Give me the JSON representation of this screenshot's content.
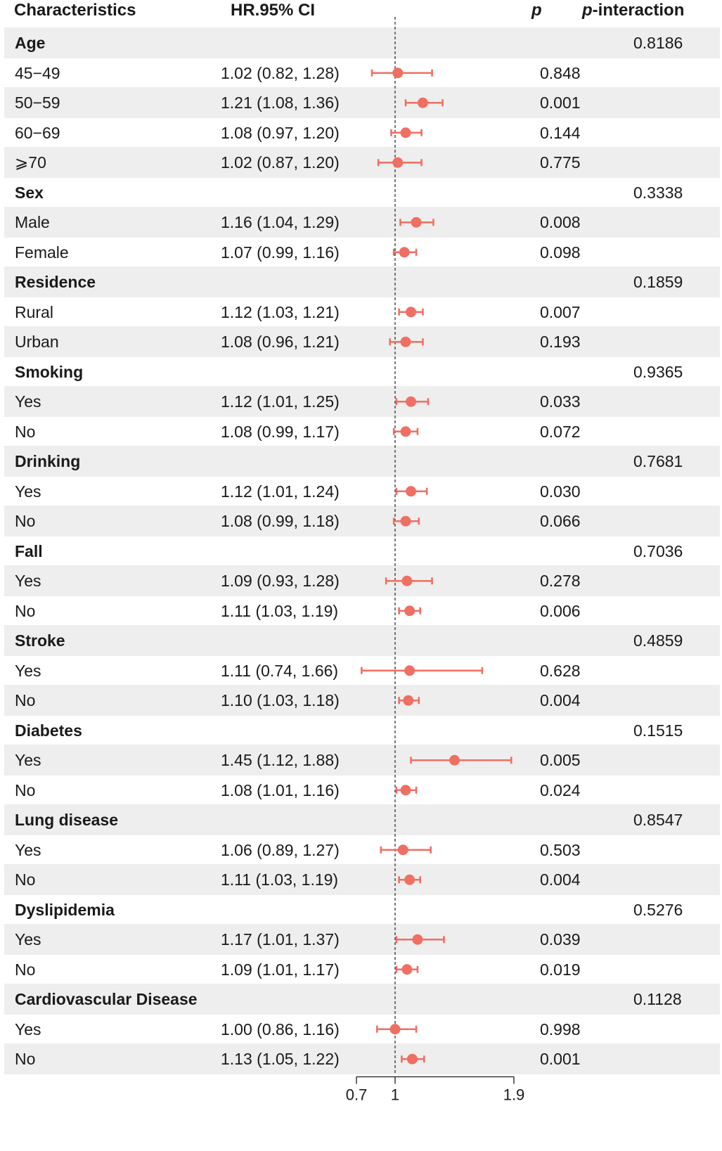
{
  "headers": {
    "characteristics": "Characteristics",
    "hr_ci": "HR.95% CI",
    "p": "p",
    "p_interaction_italic": "p",
    "p_interaction_rest": "-interaction"
  },
  "colors": {
    "point": "#ef6f63",
    "shade": "#eeeeee",
    "refline": "#333333"
  },
  "rows": [
    {
      "label": "Age",
      "group": true,
      "pint": "0.8186"
    },
    {
      "label": "45−49",
      "hr_text": "1.02 (0.82, 1.28)",
      "p": "0.848",
      "hr": 1.02,
      "lo": 0.82,
      "hi": 1.28
    },
    {
      "label": "50−59",
      "hr_text": "1.21 (1.08, 1.36)",
      "p": "0.001",
      "hr": 1.21,
      "lo": 1.08,
      "hi": 1.36
    },
    {
      "label": "60−69",
      "hr_text": "1.08 (0.97, 1.20)",
      "p": "0.144",
      "hr": 1.08,
      "lo": 0.97,
      "hi": 1.2
    },
    {
      "label": "⩾70",
      "hr_text": "1.02 (0.87, 1.20)",
      "p": "0.775",
      "hr": 1.02,
      "lo": 0.87,
      "hi": 1.2
    },
    {
      "label": "Sex",
      "group": true,
      "pint": "0.3338"
    },
    {
      "label": "Male",
      "hr_text": "1.16 (1.04, 1.29)",
      "p": "0.008",
      "hr": 1.16,
      "lo": 1.04,
      "hi": 1.29
    },
    {
      "label": "Female",
      "hr_text": "1.07 (0.99, 1.16)",
      "p": "0.098",
      "hr": 1.07,
      "lo": 0.99,
      "hi": 1.16
    },
    {
      "label": "Residence",
      "group": true,
      "pint": "0.1859"
    },
    {
      "label": "Rural",
      "hr_text": "1.12 (1.03, 1.21)",
      "p": "0.007",
      "hr": 1.12,
      "lo": 1.03,
      "hi": 1.21
    },
    {
      "label": "Urban",
      "hr_text": "1.08 (0.96, 1.21)",
      "p": "0.193",
      "hr": 1.08,
      "lo": 0.96,
      "hi": 1.21
    },
    {
      "label": "Smoking",
      "group": true,
      "pint": "0.9365"
    },
    {
      "label": "Yes",
      "hr_text": "1.12 (1.01, 1.25)",
      "p": "0.033",
      "hr": 1.12,
      "lo": 1.01,
      "hi": 1.25
    },
    {
      "label": "No",
      "hr_text": "1.08 (0.99, 1.17)",
      "p": "0.072",
      "hr": 1.08,
      "lo": 0.99,
      "hi": 1.17
    },
    {
      "label": "Drinking",
      "group": true,
      "pint": "0.7681"
    },
    {
      "label": "Yes",
      "hr_text": "1.12 (1.01, 1.24)",
      "p": "0.030",
      "hr": 1.12,
      "lo": 1.01,
      "hi": 1.24
    },
    {
      "label": "No",
      "hr_text": "1.08 (0.99, 1.18)",
      "p": "0.066",
      "hr": 1.08,
      "lo": 0.99,
      "hi": 1.18
    },
    {
      "label": "Fall",
      "group": true,
      "pint": "0.7036"
    },
    {
      "label": "Yes",
      "hr_text": "1.09 (0.93, 1.28)",
      "p": "0.278",
      "hr": 1.09,
      "lo": 0.93,
      "hi": 1.28
    },
    {
      "label": "No",
      "hr_text": "1.11 (1.03, 1.19)",
      "p": "0.006",
      "hr": 1.11,
      "lo": 1.03,
      "hi": 1.19
    },
    {
      "label": "Stroke",
      "group": true,
      "pint": "0.4859"
    },
    {
      "label": "Yes",
      "hr_text": "1.11 (0.74, 1.66)",
      "p": "0.628",
      "hr": 1.11,
      "lo": 0.74,
      "hi": 1.66
    },
    {
      "label": "No",
      "hr_text": "1.10 (1.03, 1.18)",
      "p": "0.004",
      "hr": 1.1,
      "lo": 1.03,
      "hi": 1.18
    },
    {
      "label": "Diabetes",
      "group": true,
      "pint": "0.1515"
    },
    {
      "label": "Yes",
      "hr_text": "1.45 (1.12, 1.88)",
      "p": "0.005",
      "hr": 1.45,
      "lo": 1.12,
      "hi": 1.88
    },
    {
      "label": "No",
      "hr_text": "1.08 (1.01, 1.16)",
      "p": "0.024",
      "hr": 1.08,
      "lo": 1.01,
      "hi": 1.16
    },
    {
      "label": "Lung disease",
      "group": true,
      "pint": "0.8547"
    },
    {
      "label": "Yes",
      "hr_text": "1.06 (0.89, 1.27)",
      "p": "0.503",
      "hr": 1.06,
      "lo": 0.89,
      "hi": 1.27
    },
    {
      "label": "No",
      "hr_text": "1.11 (1.03, 1.19)",
      "p": "0.004",
      "hr": 1.11,
      "lo": 1.03,
      "hi": 1.19
    },
    {
      "label": "Dyslipidemia",
      "group": true,
      "pint": "0.5276"
    },
    {
      "label": "Yes",
      "hr_text": "1.17 (1.01, 1.37)",
      "p": "0.039",
      "hr": 1.17,
      "lo": 1.01,
      "hi": 1.37
    },
    {
      "label": "No",
      "hr_text": "1.09 (1.01, 1.17)",
      "p": "0.019",
      "hr": 1.09,
      "lo": 1.01,
      "hi": 1.17
    },
    {
      "label": "Cardiovascular Disease",
      "group": true,
      "pint": "0.1128"
    },
    {
      "label": "Yes",
      "hr_text": "1.00 (0.86, 1.16)",
      "p": "0.998",
      "hr": 1.0,
      "lo": 0.86,
      "hi": 1.16
    },
    {
      "label": "No",
      "hr_text": "1.13 (1.05, 1.22)",
      "p": "0.001",
      "hr": 1.13,
      "lo": 1.05,
      "hi": 1.22
    }
  ],
  "chart_data": {
    "type": "scatter",
    "subtype": "forest-plot",
    "xlabel": "",
    "ylabel": "",
    "xlim": [
      0.7,
      1.9
    ],
    "xticks": [
      "0.7",
      "1",
      "1.9"
    ],
    "reference_line": 1,
    "reference_line_style": "dashed",
    "grid": false,
    "series": [
      {
        "categories": [
          "45−49",
          "50−59",
          "60−69",
          "⩾70",
          "Male",
          "Female",
          "Rural",
          "Urban",
          "Smoking: Yes",
          "Smoking: No",
          "Drinking: Yes",
          "Drinking: No",
          "Fall: Yes",
          "Fall: No",
          "Stroke: Yes",
          "Stroke: No",
          "Diabetes: Yes",
          "Diabetes: No",
          "Lung disease: Yes",
          "Lung disease: No",
          "Dyslipidemia: Yes",
          "Dyslipidemia: No",
          "Cardiovascular Disease: Yes",
          "Cardiovascular Disease: No"
        ],
        "hr": [
          1.02,
          1.21,
          1.08,
          1.02,
          1.16,
          1.07,
          1.12,
          1.08,
          1.12,
          1.08,
          1.12,
          1.08,
          1.09,
          1.11,
          1.11,
          1.1,
          1.45,
          1.08,
          1.06,
          1.11,
          1.17,
          1.09,
          1.0,
          1.13
        ],
        "lower": [
          0.82,
          1.08,
          0.97,
          0.87,
          1.04,
          0.99,
          1.03,
          0.96,
          1.01,
          0.99,
          1.01,
          0.99,
          0.93,
          1.03,
          0.74,
          1.03,
          1.12,
          1.01,
          0.89,
          1.03,
          1.01,
          1.01,
          0.86,
          1.05
        ],
        "upper": [
          1.28,
          1.36,
          1.2,
          1.2,
          1.29,
          1.16,
          1.21,
          1.21,
          1.25,
          1.17,
          1.24,
          1.18,
          1.28,
          1.19,
          1.66,
          1.18,
          1.88,
          1.16,
          1.27,
          1.19,
          1.37,
          1.17,
          1.16,
          1.22
        ]
      }
    ]
  }
}
